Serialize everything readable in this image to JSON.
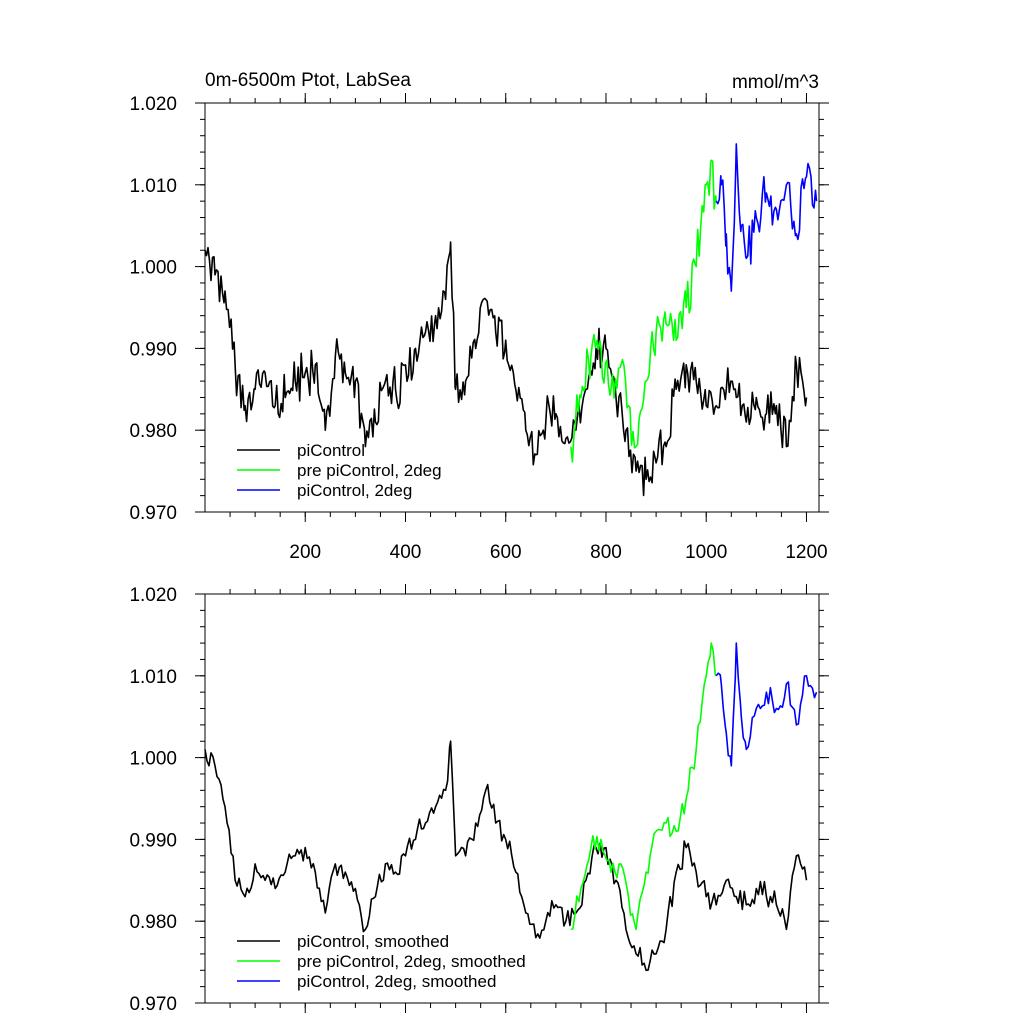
{
  "chart_data": [
    {
      "type": "line",
      "title": "0m-6500m Ptot, LabSea",
      "units": "mmol/m^3",
      "xlim": [
        0,
        1225
      ],
      "ylim": [
        0.97,
        1.02
      ],
      "x_ticks": [
        200,
        400,
        600,
        800,
        1000,
        1200
      ],
      "x_tick_labels": [
        "200",
        "400",
        "600",
        "800",
        "1000",
        "1200"
      ],
      "y_ticks": [
        0.97,
        0.98,
        0.99,
        1.0,
        1.01,
        1.02
      ],
      "y_tick_labels": [
        "0.970",
        "0.980",
        "0.990",
        "1.000",
        "1.010",
        "1.020"
      ],
      "grid": false,
      "legend_position": "bottom-left",
      "series": [
        {
          "name": "piControl",
          "color": "#000000",
          "x": [
            0,
            20,
            40,
            60,
            80,
            100,
            120,
            140,
            160,
            180,
            200,
            220,
            240,
            260,
            280,
            300,
            320,
            340,
            360,
            380,
            400,
            420,
            440,
            460,
            480,
            490,
            500,
            520,
            540,
            560,
            580,
            600,
            620,
            640,
            660,
            680,
            700,
            720,
            740,
            760,
            780,
            800,
            820,
            840,
            860,
            880,
            900,
            920,
            940,
            960,
            980,
            1000,
            1020,
            1040,
            1060,
            1080,
            1100,
            1120,
            1140,
            1160,
            1180,
            1200
          ],
          "values": [
            1.002,
            0.999,
            0.997,
            0.988,
            0.983,
            0.985,
            0.987,
            0.983,
            0.984,
            0.986,
            0.987,
            0.988,
            0.98,
            0.989,
            0.987,
            0.986,
            0.978,
            0.981,
            0.986,
            0.985,
            0.988,
            0.99,
            0.992,
            0.994,
            0.996,
            1.003,
            0.985,
            0.986,
            0.99,
            0.996,
            0.992,
            0.991,
            0.985,
            0.98,
            0.977,
            0.981,
            0.982,
            0.979,
            0.98,
            0.985,
            0.99,
            0.99,
            0.984,
            0.98,
            0.975,
            0.974,
            0.976,
            0.978,
            0.985,
            0.988,
            0.986,
            0.983,
            0.983,
            0.985,
            0.984,
            0.981,
            0.984,
            0.982,
            0.983,
            0.978,
            0.988,
            0.984
          ]
        },
        {
          "name": "pre piControl, 2deg",
          "color": "#00ff00",
          "x": [
            730,
            750,
            770,
            790,
            810,
            830,
            845,
            860,
            880,
            900,
            920,
            940,
            960,
            980,
            1000,
            1010,
            1020
          ],
          "values": [
            0.978,
            0.984,
            0.989,
            0.99,
            0.985,
            0.988,
            0.983,
            0.978,
            0.986,
            0.992,
            0.993,
            0.991,
            0.995,
            1.0,
            1.01,
            1.013,
            1.008
          ]
        },
        {
          "name": "piControl, 2deg",
          "color": "#0000ff",
          "x": [
            1020,
            1030,
            1040,
            1050,
            1060,
            1070,
            1080,
            1100,
            1120,
            1140,
            1160,
            1180,
            1200,
            1220
          ],
          "values": [
            1.008,
            1.01,
            1.004,
            0.997,
            1.015,
            1.005,
            1.001,
            1.006,
            1.009,
            1.007,
            1.01,
            1.004,
            1.011,
            1.008
          ]
        }
      ]
    },
    {
      "type": "line",
      "xlim": [
        0,
        1225
      ],
      "ylim": [
        0.97,
        1.02
      ],
      "x_ticks": [
        200,
        400,
        600,
        800,
        1000,
        1200
      ],
      "y_ticks": [
        0.97,
        0.98,
        0.99,
        1.0,
        1.01,
        1.02
      ],
      "y_tick_labels": [
        "0.970",
        "0.980",
        "0.990",
        "1.000",
        "1.010",
        "1.020"
      ],
      "grid": false,
      "legend_position": "bottom-left",
      "series": [
        {
          "name": "piControl, smoothed",
          "color": "#000000",
          "x": [
            0,
            20,
            40,
            60,
            80,
            100,
            120,
            140,
            160,
            180,
            200,
            220,
            240,
            260,
            280,
            300,
            320,
            340,
            360,
            380,
            400,
            420,
            440,
            460,
            480,
            490,
            500,
            520,
            540,
            560,
            580,
            600,
            620,
            640,
            660,
            680,
            700,
            720,
            740,
            760,
            780,
            800,
            820,
            840,
            860,
            880,
            900,
            920,
            940,
            960,
            980,
            1000,
            1020,
            1040,
            1060,
            1080,
            1100,
            1120,
            1140,
            1160,
            1180,
            1200
          ],
          "values": [
            1.001,
            0.999,
            0.994,
            0.985,
            0.983,
            0.987,
            0.985,
            0.984,
            0.986,
            0.988,
            0.989,
            0.986,
            0.981,
            0.987,
            0.986,
            0.984,
            0.979,
            0.983,
            0.987,
            0.986,
            0.988,
            0.99,
            0.992,
            0.994,
            0.996,
            1.002,
            0.988,
            0.988,
            0.992,
            0.996,
            0.992,
            0.99,
            0.986,
            0.981,
            0.978,
            0.98,
            0.982,
            0.98,
            0.981,
            0.985,
            0.989,
            0.989,
            0.985,
            0.979,
            0.976,
            0.974,
            0.976,
            0.979,
            0.986,
            0.989,
            0.986,
            0.983,
            0.982,
            0.985,
            0.983,
            0.982,
            0.984,
            0.983,
            0.982,
            0.979,
            0.988,
            0.985
          ]
        },
        {
          "name": "pre piControl, 2deg, smoothed",
          "color": "#00ff00",
          "x": [
            730,
            750,
            770,
            790,
            810,
            830,
            845,
            860,
            880,
            900,
            920,
            940,
            960,
            980,
            1000,
            1010,
            1020
          ],
          "values": [
            0.979,
            0.984,
            0.989,
            0.99,
            0.986,
            0.987,
            0.983,
            0.979,
            0.986,
            0.991,
            0.992,
            0.991,
            0.995,
            1.001,
            1.01,
            1.014,
            1.01
          ]
        },
        {
          "name": "piControl, 2deg, smoothed",
          "color": "#0000ff",
          "x": [
            1020,
            1030,
            1040,
            1050,
            1060,
            1070,
            1080,
            1100,
            1120,
            1140,
            1160,
            1180,
            1200,
            1220
          ],
          "values": [
            1.01,
            1.009,
            1.003,
            0.999,
            1.014,
            1.005,
            1.001,
            1.006,
            1.008,
            1.006,
            1.009,
            1.004,
            1.01,
            1.008
          ]
        }
      ]
    }
  ]
}
